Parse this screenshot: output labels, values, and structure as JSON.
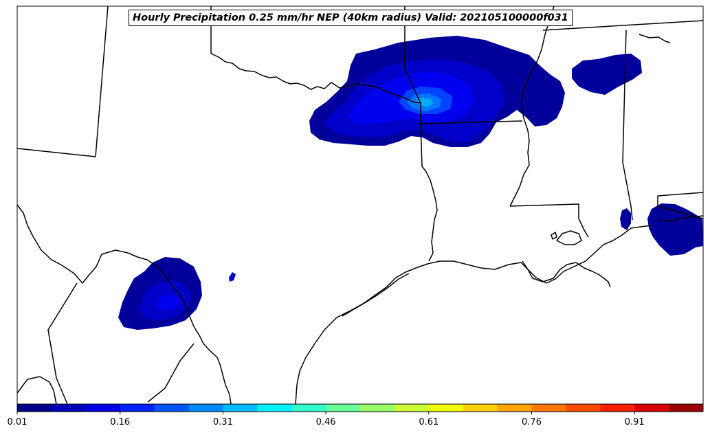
{
  "title": "Hourly Precipitation 0.25 mm/hr NEP (40km radius) Valid: 202105100000f031",
  "colorbar": {
    "colors": [
      "#00008b",
      "#0000b8",
      "#0000e6",
      "#0022ff",
      "#0055ff",
      "#0088ff",
      "#00bbff",
      "#00f0ff",
      "#33ffcc",
      "#66ff99",
      "#99ff66",
      "#ccff33",
      "#f0ff00",
      "#ffd000",
      "#ffa500",
      "#ff7800",
      "#ff4a00",
      "#ff1e00",
      "#d60000",
      "#9a0000"
    ],
    "tick_labels": [
      "0.01",
      "0.16",
      "0.31",
      "0.46",
      "0.61",
      "0.76",
      "0.91"
    ]
  },
  "probability_levels": {
    "level_1": "#00009a",
    "level_2": "#0000c8",
    "level_3": "#0000f0",
    "level_4": "#0044ff",
    "level_5": "#0077ff",
    "level_6": "#00aaff"
  }
}
